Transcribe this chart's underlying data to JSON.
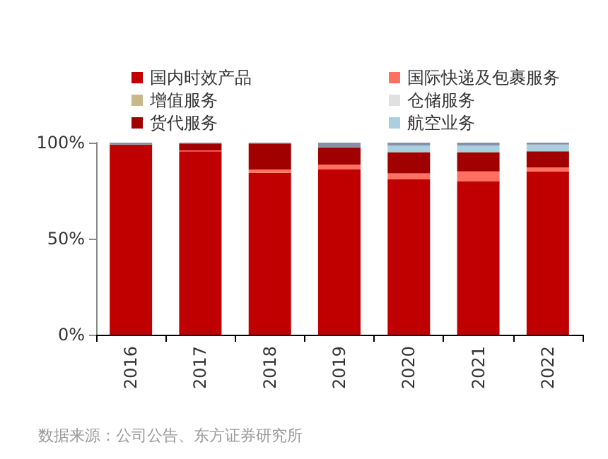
{
  "chart_data": {
    "type": "bar",
    "stacked": true,
    "categories": [
      "2016",
      "2017",
      "2018",
      "2019",
      "2020",
      "2021",
      "2022"
    ],
    "series": [
      {
        "name": "国内时效产品",
        "color": "#c00000",
        "values": [
          99,
          95.5,
          84.3,
          86,
          81,
          80,
          85
        ]
      },
      {
        "name": "国际快递及包裹服务",
        "color": "#ff7060",
        "values": [
          0,
          0.5,
          1.7,
          2.5,
          3,
          5,
          2
        ]
      },
      {
        "name": "增值服务",
        "color": "#c8b88a",
        "values": [
          0,
          0,
          0,
          0,
          0,
          0,
          0
        ]
      },
      {
        "name": "仓储服务",
        "color": "#e0e0e0",
        "values": [
          0,
          0,
          0,
          0,
          0,
          0,
          0
        ]
      },
      {
        "name": "货代服务",
        "color": "#a00000",
        "values": [
          0,
          3.5,
          13.5,
          9,
          11,
          10,
          8.5
        ]
      },
      {
        "name": "航空业务",
        "color": "#a8d0e0",
        "values": [
          0,
          0,
          0,
          0,
          3.5,
          3.5,
          3.5
        ]
      },
      {
        "color": "#8890a8",
        "values": [
          1,
          0.5,
          0.5,
          2.5,
          1.5,
          1.5,
          1
        ]
      }
    ],
    "ylim": [
      0,
      100
    ],
    "yticks": [
      {
        "value": 0,
        "label": "0%"
      },
      {
        "value": 50,
        "label": "50%"
      },
      {
        "value": 100,
        "label": "100%"
      }
    ],
    "grid": false,
    "legend": "top",
    "annotations": [
      "数据来源：公司公告、东方证券研究所"
    ]
  }
}
